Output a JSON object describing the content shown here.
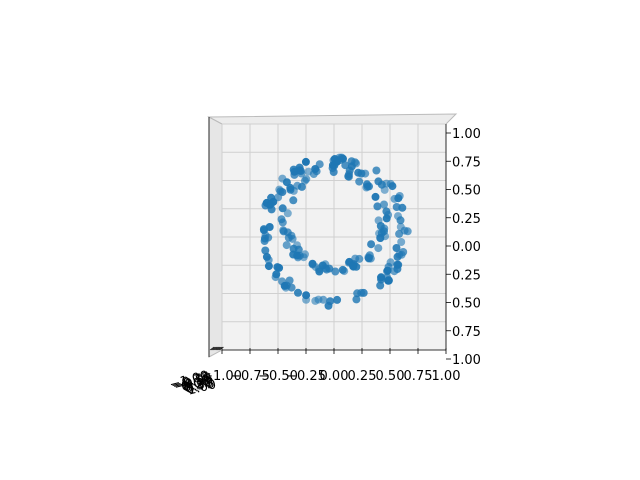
{
  "chart_data": {
    "type": "scatter",
    "projection": "3d",
    "view": "top-down",
    "title": "",
    "xlabel": "",
    "ylabel": "",
    "xlim": [
      -1.0,
      1.0
    ],
    "ylim": [
      -1.0,
      1.0
    ],
    "grid": true,
    "color": "#1f77b4",
    "x_tick_labels": [
      "−1.00",
      "−0.75",
      "−0.50",
      "−0.25",
      "0.00",
      "0.25",
      "0.50",
      "0.75",
      "1.00"
    ],
    "y_tick_labels": [
      "1.00",
      "0.75",
      "0.50",
      "0.25",
      "0.00",
      "0.25",
      "0.50",
      "0.75",
      "1.00"
    ],
    "z_tick_labels": [
      "−1.00",
      "−0.75",
      "−0.50",
      "−0.25",
      "0.00",
      "0.25",
      "0.50",
      "0.75",
      "1.00"
    ],
    "series": [
      {
        "shape": "circle",
        "radius": 0.62,
        "center": [
          0.0,
          0.05
        ],
        "point_count": 110,
        "z_range": [
          -0.25,
          0.25
        ]
      },
      {
        "shape": "circle",
        "radius": 0.44,
        "center": [
          0.0,
          0.16
        ],
        "point_count": 90,
        "z_range": [
          -0.2,
          0.2
        ]
      }
    ]
  }
}
